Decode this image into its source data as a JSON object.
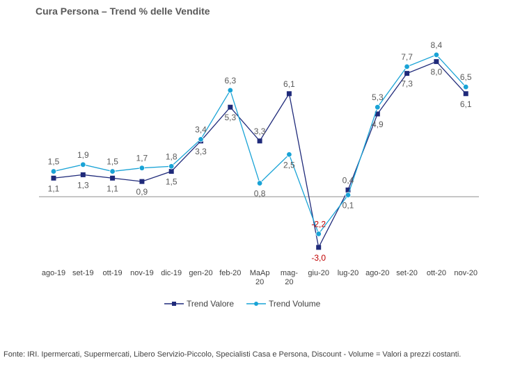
{
  "title": "Cura Persona –  Trend % delle Vendite",
  "footer": "Fonte: IRI. Ipermercati, Supermercati, Libero Servizio-Piccolo,  Specialisti Casa e Persona, Discount -  Volume =  Valori a prezzi  costanti.",
  "chart_data": {
    "type": "line",
    "categories": [
      "ago-19",
      "set-19",
      "ott-19",
      "nov-19",
      "dic-19",
      "gen-20",
      "feb-20",
      "MaAp 20",
      "mag-20",
      "giu-20",
      "lug-20",
      "ago-20",
      "set-20",
      "ott-20",
      "nov-20"
    ],
    "category_lines": [
      [
        "ago-19"
      ],
      [
        "set-19"
      ],
      [
        "ott-19"
      ],
      [
        "nov-19"
      ],
      [
        "dic-19"
      ],
      [
        "gen-20"
      ],
      [
        "feb-20"
      ],
      [
        "MaAp",
        "20"
      ],
      [
        "mag-",
        "20"
      ],
      [
        "giu-20"
      ],
      [
        "lug-20"
      ],
      [
        "ago-20"
      ],
      [
        "set-20"
      ],
      [
        "ott-20"
      ],
      [
        "nov-20"
      ]
    ],
    "series": [
      {
        "name": "Trend Valore",
        "color": "#1f2a7a",
        "marker": "square",
        "values": [
          1.1,
          1.3,
          1.1,
          0.9,
          1.5,
          3.3,
          5.3,
          3.3,
          6.1,
          -3.0,
          0.4,
          4.9,
          7.3,
          8.0,
          6.1
        ],
        "labels": [
          "1,1",
          "1,3",
          "1,1",
          "0,9",
          "1,5",
          "3,3",
          "5,3",
          "3,3",
          "6,1",
          "-3,0",
          "0,4",
          "4,9",
          "7,3",
          "8,0",
          "6,1"
        ]
      },
      {
        "name": "Trend Volume",
        "color": "#19a3d6",
        "marker": "circle",
        "values": [
          1.5,
          1.9,
          1.5,
          1.7,
          1.8,
          3.4,
          6.3,
          0.8,
          2.5,
          -2.2,
          0.1,
          5.3,
          7.7,
          8.4,
          6.5
        ],
        "labels": [
          "1,5",
          "1,9",
          "1,5",
          "1,7",
          "1,8",
          "3,4",
          "6,3",
          "0,8",
          "2,5",
          "-2,2",
          "0,1",
          "5,3",
          "7,7",
          "8,4",
          "6,5"
        ]
      }
    ],
    "negative_label_color": "#c00000",
    "grid": false,
    "legend_position": "bottom",
    "xlabel": "",
    "ylabel": ""
  }
}
